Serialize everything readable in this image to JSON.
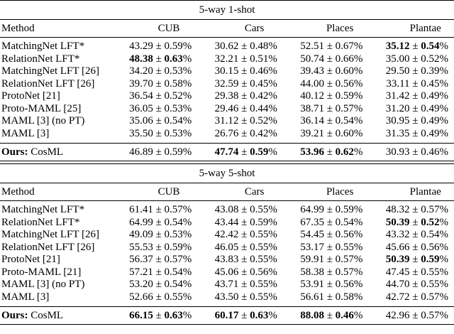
{
  "tables": [
    {
      "title": "5-way 1-shot",
      "header": [
        "Method",
        "CUB",
        "Cars",
        "Places",
        "Plantae"
      ],
      "rows": [
        {
          "method": "MatchingNet LFT*",
          "cells": [
            {
              "mean": "43.29",
              "ci": "0.59",
              "bold": false
            },
            {
              "mean": "30.62",
              "ci": "0.48",
              "bold": false
            },
            {
              "mean": "52.51",
              "ci": "0.67",
              "bold": false
            },
            {
              "mean": "35.12",
              "ci": "0.54",
              "bold": true
            }
          ]
        },
        {
          "method": "RelationNet LFT*",
          "cells": [
            {
              "mean": "48.38",
              "ci": "0.63",
              "bold": true
            },
            {
              "mean": "32.21",
              "ci": "0.51",
              "bold": false
            },
            {
              "mean": "50.74",
              "ci": "0.66",
              "bold": false
            },
            {
              "mean": "35.00",
              "ci": "0.52",
              "bold": false
            }
          ]
        },
        {
          "method": "MatchingNet LFT [26]",
          "cells": [
            {
              "mean": "34.20",
              "ci": "0.53",
              "bold": false
            },
            {
              "mean": "30.15",
              "ci": "0.46",
              "bold": false
            },
            {
              "mean": "39.43",
              "ci": "0.60",
              "bold": false
            },
            {
              "mean": "29.50",
              "ci": "0.39",
              "bold": false
            }
          ]
        },
        {
          "method": "RelationNet LFT [26]",
          "cells": [
            {
              "mean": "39.70",
              "ci": "0.58",
              "bold": false
            },
            {
              "mean": "32.59",
              "ci": "0.45",
              "bold": false
            },
            {
              "mean": "44.00",
              "ci": "0.56",
              "bold": false
            },
            {
              "mean": "33.11",
              "ci": "0.45",
              "bold": false
            }
          ]
        },
        {
          "method": "ProtoNet [21]",
          "cells": [
            {
              "mean": "36.54",
              "ci": "0.52",
              "bold": false
            },
            {
              "mean": "29.38",
              "ci": "0.42",
              "bold": false
            },
            {
              "mean": "40.12",
              "ci": "0.59",
              "bold": false
            },
            {
              "mean": "31.42",
              "ci": "0.49",
              "bold": false
            }
          ]
        },
        {
          "method": "Proto-MAML [25]",
          "cells": [
            {
              "mean": "36.05",
              "ci": "0.53",
              "bold": false
            },
            {
              "mean": "29.46",
              "ci": "0.44",
              "bold": false
            },
            {
              "mean": "38.71",
              "ci": "0.57",
              "bold": false
            },
            {
              "mean": "31.20",
              "ci": "0.49",
              "bold": false
            }
          ]
        },
        {
          "method": "MAML [3] (no PT)",
          "cells": [
            {
              "mean": "35.06",
              "ci": "0.54",
              "bold": false
            },
            {
              "mean": "31.12",
              "ci": "0.52",
              "bold": false
            },
            {
              "mean": "36.14",
              "ci": "0.54",
              "bold": false
            },
            {
              "mean": "30.95",
              "ci": "0.49",
              "bold": false
            }
          ]
        },
        {
          "method": "MAML [3]",
          "cells": [
            {
              "mean": "35.50",
              "ci": "0.53",
              "bold": false
            },
            {
              "mean": "26.76",
              "ci": "0.42",
              "bold": false
            },
            {
              "mean": "39.21",
              "ci": "0.60",
              "bold": false
            },
            {
              "mean": "31.35",
              "ci": "0.49",
              "bold": false
            }
          ]
        }
      ],
      "ours": {
        "prefix": "Ours:",
        "name": "CosML",
        "cells": [
          {
            "mean": "46.89",
            "ci": "0.59",
            "bold": false
          },
          {
            "mean": "47.74",
            "ci": "0.59",
            "bold": true
          },
          {
            "mean": "53.96",
            "ci": "0.62",
            "bold": true
          },
          {
            "mean": "30.93",
            "ci": "0.46",
            "bold": false
          }
        ]
      }
    },
    {
      "title": "5-way 5-shot",
      "header": [
        "Method",
        "CUB",
        "Cars",
        "Places",
        "Plantae"
      ],
      "rows": [
        {
          "method": "MatchingNet LFT*",
          "cells": [
            {
              "mean": "61.41",
              "ci": "0.57",
              "bold": false
            },
            {
              "mean": "43.08",
              "ci": "0.55",
              "bold": false
            },
            {
              "mean": "64.99",
              "ci": "0.59",
              "bold": false
            },
            {
              "mean": "48.32",
              "ci": "0.57",
              "bold": false
            }
          ]
        },
        {
          "method": "RelationNet LFT*",
          "cells": [
            {
              "mean": "64.99",
              "ci": "0.54",
              "bold": false
            },
            {
              "mean": "43.44",
              "ci": "0.59",
              "bold": false
            },
            {
              "mean": "67.35",
              "ci": "0.54",
              "bold": false
            },
            {
              "mean": "50.39",
              "ci": "0.52",
              "bold": true
            }
          ]
        },
        {
          "method": "MatchingNet LFT [26]",
          "cells": [
            {
              "mean": "49.09",
              "ci": "0.53",
              "bold": false
            },
            {
              "mean": "42.42",
              "ci": "0.55",
              "bold": false
            },
            {
              "mean": "54.45",
              "ci": "0.56",
              "bold": false
            },
            {
              "mean": "43.32",
              "ci": "0.54",
              "bold": false
            }
          ]
        },
        {
          "method": "RelationNet LFT [26]",
          "cells": [
            {
              "mean": "55.53",
              "ci": "0.59",
              "bold": false
            },
            {
              "mean": "46.05",
              "ci": "0.55",
              "bold": false
            },
            {
              "mean": "53.17",
              "ci": "0.55",
              "bold": false
            },
            {
              "mean": "45.66",
              "ci": "0.56",
              "bold": false
            }
          ]
        },
        {
          "method": "ProtoNet [21]",
          "cells": [
            {
              "mean": "56.37",
              "ci": "0.57",
              "bold": false
            },
            {
              "mean": "43.83",
              "ci": "0.55",
              "bold": false
            },
            {
              "mean": "59.91",
              "ci": "0.57",
              "bold": false
            },
            {
              "mean": "50.39",
              "ci": "0.59",
              "bold": true
            }
          ]
        },
        {
          "method": "Proto-MAML [21]",
          "cells": [
            {
              "mean": "57.21",
              "ci": "0.54",
              "bold": false
            },
            {
              "mean": "45.06",
              "ci": "0.56",
              "bold": false
            },
            {
              "mean": "58.38",
              "ci": "0.57",
              "bold": false
            },
            {
              "mean": "47.45",
              "ci": "0.55",
              "bold": false
            }
          ]
        },
        {
          "method": "MAML [3] (no PT)",
          "cells": [
            {
              "mean": "53.20",
              "ci": "0.54",
              "bold": false
            },
            {
              "mean": "43.71",
              "ci": "0.55",
              "bold": false
            },
            {
              "mean": "53.91",
              "ci": "0.56",
              "bold": false
            },
            {
              "mean": "44.70",
              "ci": "0.55",
              "bold": false
            }
          ]
        },
        {
          "method": "MAML [3]",
          "cells": [
            {
              "mean": "52.66",
              "ci": "0.55",
              "bold": false
            },
            {
              "mean": "43.50",
              "ci": "0.55",
              "bold": false
            },
            {
              "mean": "56.61",
              "ci": "0.58",
              "bold": false
            },
            {
              "mean": "42.72",
              "ci": "0.57",
              "bold": false
            }
          ]
        }
      ],
      "ours": {
        "prefix": "Ours:",
        "name": "CosML",
        "cells": [
          {
            "mean": "66.15",
            "ci": "0.63",
            "bold": true
          },
          {
            "mean": "60.17",
            "ci": "0.63",
            "bold": true
          },
          {
            "mean": "88.08",
            "ci": "0.46",
            "bold": true
          },
          {
            "mean": "42.96",
            "ci": "0.57",
            "bold": false
          }
        ]
      }
    }
  ]
}
